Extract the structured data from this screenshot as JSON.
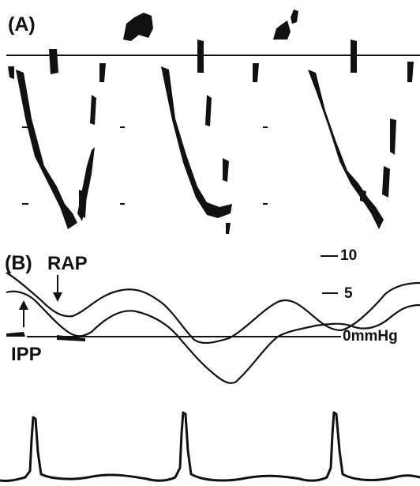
{
  "panel_a": {
    "label": "(A)"
  },
  "panel_b": {
    "label": "(B)",
    "rap_label": "RAP",
    "ipp_label": "IPP",
    "scale": {
      "top": "10",
      "mid": "5",
      "zero": "0mmHg"
    }
  },
  "colors": {
    "ink": "#111111",
    "background": "#ffffff"
  }
}
